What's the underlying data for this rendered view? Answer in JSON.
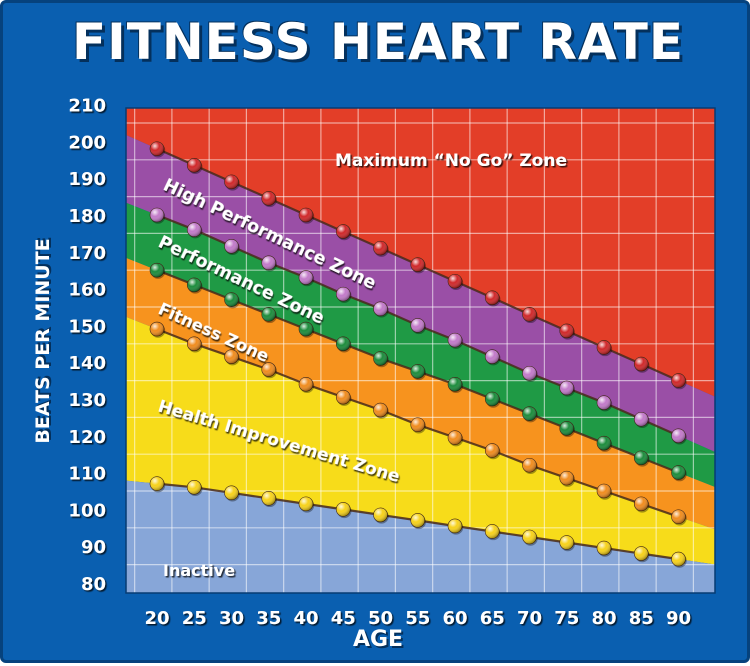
{
  "chart_data": {
    "type": "area",
    "title": "FITNESS HEART RATE",
    "xlabel": "AGE",
    "ylabel": "BEATS PER MINUTE",
    "xlim": [
      20,
      90
    ],
    "ylim": [
      80,
      210
    ],
    "grid": true,
    "x": [
      20,
      25,
      30,
      35,
      40,
      45,
      50,
      55,
      60,
      65,
      70,
      75,
      80,
      85,
      90
    ],
    "yticks": [
      80,
      90,
      100,
      110,
      120,
      130,
      140,
      150,
      160,
      170,
      180,
      190,
      200,
      210
    ],
    "series": [
      {
        "values": [
          198,
          193.5,
          189,
          184.5,
          180,
          175.5,
          171,
          166.5,
          162,
          157.5,
          153,
          148.5,
          144,
          139.5,
          135
        ],
        "color": "#d0282a"
      },
      {
        "values": [
          180,
          176,
          171.5,
          167,
          163,
          158.5,
          154.5,
          150,
          146,
          141.5,
          137,
          133,
          129,
          124.5,
          120
        ],
        "color": "#c27ac9"
      },
      {
        "values": [
          165,
          161,
          157,
          153,
          149,
          145,
          141,
          137.5,
          134,
          130,
          126,
          122,
          118,
          114,
          110
        ],
        "color": "#1c8c3c"
      },
      {
        "values": [
          149,
          145,
          141.5,
          138,
          134,
          130.5,
          127,
          123,
          119.5,
          116,
          112,
          108.5,
          105,
          101.5,
          98
        ],
        "color": "#f08c1e"
      },
      {
        "values": [
          107,
          106,
          104.5,
          103,
          101.5,
          100,
          98.5,
          97,
          95.5,
          94,
          92.5,
          91,
          89.5,
          88,
          86.5
        ],
        "color": "#f7d21a"
      }
    ],
    "zones": [
      {
        "label": "Maximum “No Go” Zone",
        "color": "#e33e28"
      },
      {
        "label": "High Performance Zone",
        "color": "#9a4fa6"
      },
      {
        "label": "Performance Zone",
        "color": "#1f9a45"
      },
      {
        "label": "Fitness Zone",
        "color": "#f7931e"
      },
      {
        "label": "Health Improvement Zone",
        "color": "#f7dc1a"
      },
      {
        "label": "Inactive",
        "color": "#87a6d8"
      }
    ]
  }
}
